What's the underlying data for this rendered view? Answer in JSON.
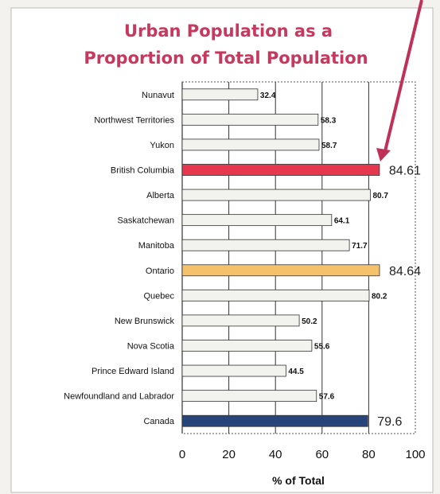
{
  "chart_data": {
    "type": "bar",
    "orientation": "horizontal",
    "title_lines": [
      "Urban Population as a",
      "Proportion of Total Population"
    ],
    "categories": [
      "Nunavut",
      "Northwest Territories",
      "Yukon",
      "British Columbia",
      "Alberta",
      "Saskatchewan",
      "Manitoba",
      "Ontario",
      "Quebec",
      "New Brunswick",
      "Nova Scotia",
      "Prince Edward Island",
      "Newfoundland and Labrador",
      "Canada"
    ],
    "values": [
      32.4,
      58.3,
      58.7,
      84.61,
      80.7,
      64.1,
      71.7,
      84.64,
      80.2,
      50.2,
      55.6,
      44.5,
      57.6,
      79.6
    ],
    "value_labels": [
      "32.4",
      "58.3",
      "58.7",
      "84.61",
      "80.7",
      "64.1",
      "71.7",
      "84.64",
      "80.2",
      "50.2",
      "55.6",
      "44.5",
      "57.6",
      "79.6"
    ],
    "highlighted": [
      "British Columbia",
      "Ontario",
      "Canada"
    ],
    "xlim": [
      0,
      100
    ],
    "xticks": [
      "0",
      "20",
      "40",
      "60",
      "80",
      "100"
    ],
    "xlabel": "% of Total",
    "ylabel": "",
    "grid": true,
    "colors": {
      "title": "#c8375d",
      "default_bar": "#f2f2ef",
      "British Columbia": "#e5384f",
      "Ontario": "#f5c26b",
      "Canada": "#27457a",
      "arrow": "#c0315a"
    }
  }
}
